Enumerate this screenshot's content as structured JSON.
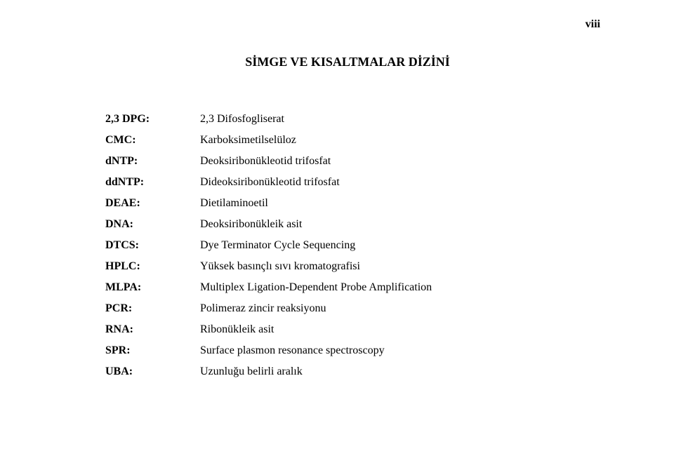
{
  "page_number": "viii",
  "heading": "SİMGE VE KISALTMALAR DİZİNİ",
  "entries": [
    {
      "term": "2,3 DPG:",
      "def": "2,3 Difosfogliserat"
    },
    {
      "term": "CMC:",
      "def": "Karboksimetilselüloz"
    },
    {
      "term": "dNTP:",
      "def": "Deoksiribonükleotid trifosfat"
    },
    {
      "term": "ddNTP:",
      "def": "Dideoksiribonükleotid trifosfat"
    },
    {
      "term": "DEAE:",
      "def": "Dietilaminoetil"
    },
    {
      "term": "DNA:",
      "def": "Deoksiribonükleik asit"
    },
    {
      "term": "DTCS:",
      "def": "Dye Terminator Cycle Sequencing"
    },
    {
      "term": "HPLC:",
      "def": "Yüksek basınçlı sıvı kromatografisi"
    },
    {
      "term": "MLPA:",
      "def": "Multiplex Ligation-Dependent Probe Amplification"
    },
    {
      "term": "PCR:",
      "def": "Polimeraz zincir reaksiyonu"
    },
    {
      "term": "RNA:",
      "def": "Ribonükleik asit"
    },
    {
      "term": "SPR:",
      "def": "Surface plasmon resonance spectroscopy"
    },
    {
      "term": "UBA:",
      "def": "Uzunluğu belirli aralık"
    }
  ]
}
